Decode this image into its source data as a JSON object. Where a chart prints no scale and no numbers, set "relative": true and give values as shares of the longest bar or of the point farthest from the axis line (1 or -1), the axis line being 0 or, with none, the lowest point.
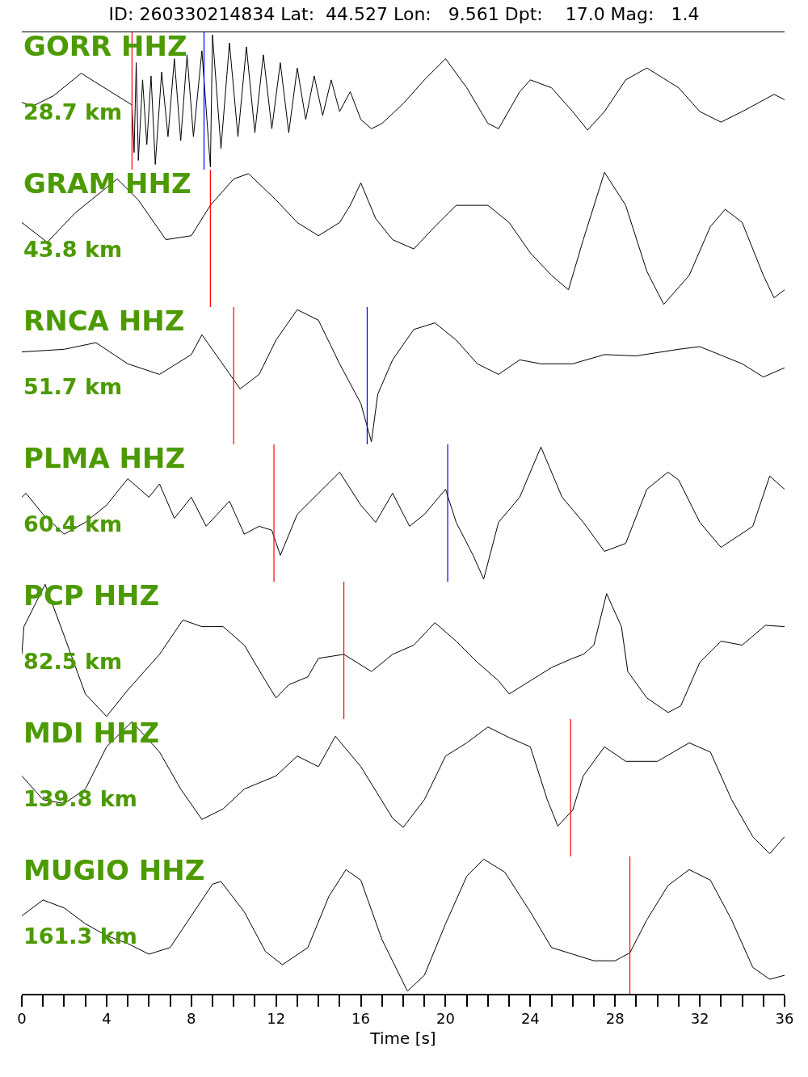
{
  "chart_data": [
    {
      "type": "line",
      "title": "ID: 260330214834 Lat:  44.527 Lon:   9.561 Dpt:    17.0 Mag:   1.4",
      "relative": true,
      "xlim": [
        0,
        36
      ],
      "tick_labels": false,
      "annotations": [
        "GORR HHZ",
        "28.7 km"
      ],
      "ref_lines": [
        {
          "axis": "x",
          "value": 5.2,
          "color": "#ff0000"
        },
        {
          "axis": "x",
          "value": 8.6,
          "color": "#0000ff"
        }
      ],
      "x": [
        0,
        0.5,
        1.5,
        2.8,
        4,
        5.2,
        5.3,
        5.4,
        5.5,
        5.7,
        5.9,
        6.1,
        6.3,
        6.6,
        6.9,
        7.2,
        7.5,
        7.8,
        8.1,
        8.5,
        8.9,
        9.0,
        9.4,
        9.8,
        10.2,
        10.6,
        11,
        11.4,
        11.8,
        12.2,
        12.6,
        13,
        13.4,
        13.8,
        14.2,
        14.6,
        15,
        15.5,
        16,
        16.5,
        17,
        18,
        19,
        20,
        21,
        22,
        22.5,
        23.5,
        24,
        25,
        26,
        26.7,
        27.5,
        28.5,
        29.5,
        31,
        32,
        33,
        34,
        35.5,
        36
      ],
      "series": [
        {
          "color": "#000000",
          "values": [
            0.49,
            0.46,
            0.54,
            0.71,
            0.59,
            0.47,
            0.11,
            0.79,
            0.05,
            0.66,
            0.17,
            0.69,
            0.02,
            0.72,
            0.23,
            0.82,
            0.2,
            0.85,
            0.23,
            0.88,
            0,
            1,
            0.14,
            0.94,
            0.23,
            0.91,
            0.26,
            0.85,
            0.29,
            0.79,
            0.26,
            0.75,
            0.36,
            0.69,
            0.39,
            0.66,
            0.42,
            0.57,
            0.36,
            0.29,
            0.33,
            0.48,
            0.66,
            0.82,
            0.6,
            0.33,
            0.29,
            0.57,
            0.66,
            0.6,
            0.42,
            0.28,
            0.42,
            0.66,
            0.75,
            0.6,
            0.42,
            0.34,
            0.42,
            0.55,
            0.51
          ]
        }
      ]
    },
    {
      "type": "line",
      "relative": true,
      "xlim": [
        0,
        36
      ],
      "tick_labels": false,
      "annotations": [
        "GRAM HHZ",
        "43.8 km"
      ],
      "ref_lines": [
        {
          "axis": "x",
          "value": 8.9,
          "color": "#ff0000"
        }
      ],
      "x": [
        0,
        1.2,
        2.5,
        4.5,
        5.5,
        6.8,
        8,
        8.9,
        10,
        10.7,
        12,
        13,
        14,
        15,
        15.5,
        16,
        16.7,
        17.5,
        18.5,
        19.5,
        20.5,
        22,
        23,
        24,
        25,
        25.8,
        26.5,
        27.5,
        28.5,
        29.5,
        30.3,
        31.5,
        32.5,
        33.2,
        34,
        35,
        35.5,
        36
      ],
      "series": [
        {
          "color": "#000000",
          "values": [
            0.62,
            0.47,
            0.69,
            0.95,
            0.79,
            0.49,
            0.52,
            0.75,
            0.95,
            0.99,
            0.79,
            0.62,
            0.52,
            0.62,
            0.75,
            0.92,
            0.65,
            0.49,
            0.42,
            0.59,
            0.75,
            0.75,
            0.62,
            0.39,
            0.22,
            0.11,
            0.49,
            1,
            0.75,
            0.25,
            0,
            0.22,
            0.59,
            0.72,
            0.62,
            0.22,
            0.05,
            0.11
          ]
        }
      ]
    },
    {
      "type": "line",
      "relative": true,
      "xlim": [
        0,
        36
      ],
      "tick_labels": false,
      "annotations": [
        "RNCA HHZ",
        "51.7 km"
      ],
      "ref_lines": [
        {
          "axis": "x",
          "value": 10,
          "color": "#ff0000"
        },
        {
          "axis": "x",
          "value": 16.3,
          "color": "#0000ff"
        }
      ],
      "x": [
        0,
        2,
        3.5,
        5,
        6.5,
        8,
        8.5,
        10,
        10.3,
        11.2,
        12,
        13,
        14,
        15,
        16,
        16.5,
        16.8,
        17.5,
        18.5,
        19.5,
        20.5,
        21.5,
        22.5,
        23.5,
        24.5,
        26,
        27.5,
        29,
        31,
        32,
        34,
        35,
        36
      ],
      "series": [
        {
          "color": "#000000",
          "values": [
            0.68,
            0.7,
            0.75,
            0.59,
            0.51,
            0.66,
            0.81,
            0.47,
            0.4,
            0.51,
            0.77,
            1,
            0.92,
            0.59,
            0.29,
            0,
            0.36,
            0.62,
            0.85,
            0.9,
            0.77,
            0.59,
            0.51,
            0.62,
            0.59,
            0.59,
            0.66,
            0.65,
            0.7,
            0.72,
            0.59,
            0.49,
            0.56
          ]
        }
      ]
    },
    {
      "type": "line",
      "relative": true,
      "xlim": [
        0,
        36
      ],
      "tick_labels": false,
      "annotations": [
        "PLMA HHZ",
        "60.4 km"
      ],
      "ref_lines": [
        {
          "axis": "x",
          "value": 11.9,
          "color": "#ff0000"
        },
        {
          "axis": "x",
          "value": 20.1,
          "color": "#0000ff"
        }
      ],
      "x": [
        0,
        0.2,
        1,
        2,
        3,
        4,
        5,
        6,
        6.5,
        7.2,
        8,
        8.7,
        9.8,
        10.5,
        11.2,
        11.8,
        12.2,
        13,
        14,
        15,
        16,
        16.7,
        17.5,
        18.3,
        19,
        20,
        20.5,
        21.3,
        21.8,
        22.5,
        23.5,
        24.5,
        25.5,
        26.5,
        27.5,
        28.5,
        29.5,
        30.5,
        31,
        32,
        33,
        34.5,
        35.3,
        36
      ],
      "series": [
        {
          "color": "#000000",
          "values": [
            0.62,
            0.65,
            0.49,
            0.34,
            0.43,
            0.56,
            0.76,
            0.62,
            0.72,
            0.46,
            0.62,
            0.4,
            0.59,
            0.34,
            0.4,
            0.37,
            0.18,
            0.49,
            0.65,
            0.81,
            0.56,
            0.43,
            0.65,
            0.4,
            0.49,
            0.68,
            0.43,
            0.18,
            0,
            0.43,
            0.62,
            1,
            0.62,
            0.43,
            0.21,
            0.27,
            0.68,
            0.81,
            0.75,
            0.43,
            0.24,
            0.4,
            0.78,
            0.68
          ]
        }
      ]
    },
    {
      "type": "line",
      "relative": true,
      "xlim": [
        0,
        36
      ],
      "tick_labels": false,
      "annotations": [
        "PCP HHZ",
        "82.5 km"
      ],
      "ref_lines": [
        {
          "axis": "x",
          "value": 15.2,
          "color": "#ff0000"
        }
      ],
      "x": [
        0,
        0.1,
        1.1,
        2,
        3,
        4,
        5,
        6.5,
        7.6,
        8.5,
        9.5,
        10.5,
        11.5,
        12,
        12.6,
        13.5,
        14,
        15.2,
        16.5,
        17.5,
        18.5,
        19.5,
        20.5,
        21.5,
        22.5,
        23,
        24,
        25,
        26,
        26.5,
        27,
        27.6,
        28.3,
        28.6,
        29.5,
        30.5,
        31.1,
        32,
        33,
        34,
        35.1,
        36
      ],
      "series": [
        {
          "color": "#000000",
          "values": [
            0.47,
            0.68,
            1,
            0.61,
            0.17,
            0,
            0.2,
            0.47,
            0.73,
            0.68,
            0.68,
            0.54,
            0.27,
            0.14,
            0.24,
            0.3,
            0.44,
            0.47,
            0.34,
            0.47,
            0.54,
            0.71,
            0.57,
            0.41,
            0.27,
            0.17,
            0.27,
            0.37,
            0.44,
            0.47,
            0.54,
            0.93,
            0.68,
            0.34,
            0.14,
            0.03,
            0.08,
            0.41,
            0.57,
            0.54,
            0.69,
            0.68
          ]
        }
      ]
    },
    {
      "type": "line",
      "relative": true,
      "xlim": [
        0,
        36
      ],
      "tick_labels": false,
      "annotations": [
        "MDI HHZ",
        "139.8 km"
      ],
      "ref_lines": [
        {
          "axis": "x",
          "value": 25.9,
          "color": "#ff0000"
        }
      ],
      "x": [
        0,
        1,
        2,
        3,
        4,
        5.2,
        6.5,
        7.5,
        8.5,
        9.5,
        10.5,
        12,
        13,
        14,
        14.8,
        16,
        17.5,
        18,
        19,
        20,
        21,
        22,
        23,
        24,
        24.8,
        25.3,
        26,
        26.5,
        27.5,
        28.5,
        30,
        31.5,
        32.5,
        33.5,
        34.5,
        35.3,
        36
      ],
      "series": [
        {
          "color": "#000000",
          "values": [
            0.59,
            0.41,
            0.38,
            0.49,
            0.81,
            1,
            0.77,
            0.49,
            0.26,
            0.34,
            0.49,
            0.59,
            0.74,
            0.66,
            0.89,
            0.66,
            0.27,
            0.2,
            0.41,
            0.74,
            0.84,
            0.96,
            0.88,
            0.81,
            0.41,
            0.21,
            0.33,
            0.59,
            0.81,
            0.7,
            0.7,
            0.84,
            0.77,
            0.41,
            0.13,
            0,
            0.13
          ]
        }
      ]
    },
    {
      "type": "line",
      "relative": true,
      "xlim": [
        0,
        36
      ],
      "xlabel": "Time [s]",
      "tick_labels": "x",
      "annotations": [
        "MUGIO HHZ",
        "161.3 km"
      ],
      "ref_lines": [
        {
          "axis": "x",
          "value": 28.7,
          "color": "#ff0000"
        }
      ],
      "xticks": [
        0,
        {
          "value": 1,
          "label": null
        },
        {
          "value": 2,
          "label": null
        },
        {
          "value": 3,
          "label": null
        },
        4,
        {
          "value": 5,
          "label": null
        },
        {
          "value": 6,
          "label": null
        },
        {
          "value": 7,
          "label": null
        },
        8,
        {
          "value": 9,
          "label": null
        },
        {
          "value": 10,
          "label": null
        },
        {
          "value": 11,
          "label": null
        },
        12,
        {
          "value": 13,
          "label": null
        },
        {
          "value": 14,
          "label": null
        },
        {
          "value": 15,
          "label": null
        },
        16,
        {
          "value": 17,
          "label": null
        },
        {
          "value": 18,
          "label": null
        },
        {
          "value": 19,
          "label": null
        },
        20,
        {
          "value": 21,
          "label": null
        },
        {
          "value": 22,
          "label": null
        },
        {
          "value": 23,
          "label": null
        },
        24,
        {
          "value": 25,
          "label": null
        },
        {
          "value": 26,
          "label": null
        },
        {
          "value": 27,
          "label": null
        },
        28,
        {
          "value": 29,
          "label": null
        },
        {
          "value": 30,
          "label": null
        },
        {
          "value": 31,
          "label": null
        },
        32,
        {
          "value": 33,
          "label": null
        },
        {
          "value": 34,
          "label": null
        },
        {
          "value": 35,
          "label": null
        },
        36
      ],
      "x": [
        0,
        1,
        2,
        3,
        4,
        5,
        6,
        7,
        8,
        9,
        9.4,
        10.5,
        11.5,
        12.3,
        13.5,
        14.5,
        15.3,
        16,
        17,
        18.2,
        19,
        20,
        21,
        21.8,
        22.8,
        24,
        25,
        26,
        27,
        28,
        28.7,
        29.5,
        30.5,
        31.5,
        32.5,
        33.5,
        34.5,
        35.3,
        36
      ],
      "series": [
        {
          "color": "#000000",
          "values": [
            0.57,
            0.69,
            0.63,
            0.51,
            0.42,
            0.36,
            0.28,
            0.33,
            0.57,
            0.81,
            0.83,
            0.6,
            0.3,
            0.2,
            0.33,
            0.72,
            0.92,
            0.84,
            0.39,
            0,
            0.12,
            0.51,
            0.87,
            1,
            0.9,
            0.6,
            0.33,
            0.28,
            0.23,
            0.23,
            0.29,
            0.54,
            0.8,
            0.92,
            0.84,
            0.54,
            0.18,
            0.09,
            0.12
          ]
        }
      ]
    }
  ]
}
